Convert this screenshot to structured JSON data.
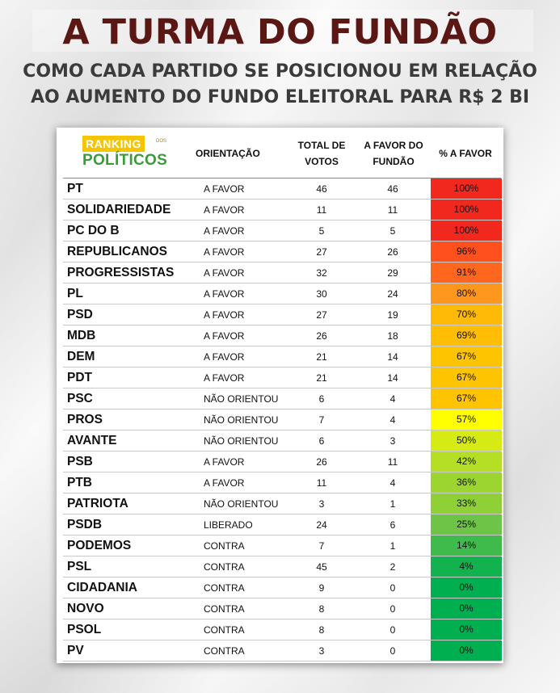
{
  "title": "A TURMA DO FUNDÃO",
  "subtitle_line1": "COMO CADA PARTIDO SE POSICIONOU EM RELAÇÃO",
  "subtitle_line2": "AO AUMENTO DO FUNDO ELEITORAL PARA R$ 2 BI",
  "logo": {
    "top": "RANKING",
    "mini": "DOS",
    "bottom": "POLÍTICOS"
  },
  "headers": {
    "orientation": "ORIENTAÇÃO",
    "total": "TOTAL DE VOTOS",
    "favor": "A FAVOR DO FUNDÃO",
    "pct": "% A FAVOR"
  },
  "colors": {
    "title": "#5a1713",
    "logo_yellow": "#f5c600",
    "logo_green": "#3a9b3a"
  },
  "rows": [
    {
      "party": "PT",
      "orientation": "A FAVOR",
      "total": "46",
      "favor": "46",
      "pct": "100%",
      "pct_value": 100
    },
    {
      "party": "SOLIDARIEDADE",
      "orientation": "A FAVOR",
      "total": "11",
      "favor": "11",
      "pct": "100%",
      "pct_value": 100
    },
    {
      "party": "PC DO B",
      "orientation": "A FAVOR",
      "total": "5",
      "favor": "5",
      "pct": "100%",
      "pct_value": 100
    },
    {
      "party": "REPUBLICANOS",
      "orientation": "A FAVOR",
      "total": "27",
      "favor": "26",
      "pct": "96%",
      "pct_value": 96
    },
    {
      "party": "PROGRESSISTAS",
      "orientation": "A FAVOR",
      "total": "32",
      "favor": "29",
      "pct": "91%",
      "pct_value": 91
    },
    {
      "party": "PL",
      "orientation": "A FAVOR",
      "total": "30",
      "favor": "24",
      "pct": "80%",
      "pct_value": 80
    },
    {
      "party": "PSD",
      "orientation": "A FAVOR",
      "total": "27",
      "favor": "19",
      "pct": "70%",
      "pct_value": 70
    },
    {
      "party": "MDB",
      "orientation": "A FAVOR",
      "total": "26",
      "favor": "18",
      "pct": "69%",
      "pct_value": 69
    },
    {
      "party": "DEM",
      "orientation": "A FAVOR",
      "total": "21",
      "favor": "14",
      "pct": "67%",
      "pct_value": 67
    },
    {
      "party": "PDT",
      "orientation": "A FAVOR",
      "total": "21",
      "favor": "14",
      "pct": "67%",
      "pct_value": 67
    },
    {
      "party": "PSC",
      "orientation": "NÃO ORIENTOU",
      "total": "6",
      "favor": "4",
      "pct": "67%",
      "pct_value": 67
    },
    {
      "party": "PROS",
      "orientation": "NÃO ORIENTOU",
      "total": "7",
      "favor": "4",
      "pct": "57%",
      "pct_value": 57
    },
    {
      "party": "AVANTE",
      "orientation": "NÃO ORIENTOU",
      "total": "6",
      "favor": "3",
      "pct": "50%",
      "pct_value": 50
    },
    {
      "party": "PSB",
      "orientation": "A FAVOR",
      "total": "26",
      "favor": "11",
      "pct": "42%",
      "pct_value": 42
    },
    {
      "party": "PTB",
      "orientation": "A FAVOR",
      "total": "11",
      "favor": "4",
      "pct": "36%",
      "pct_value": 36
    },
    {
      "party": "PATRIOTA",
      "orientation": "NÃO ORIENTOU",
      "total": "3",
      "favor": "1",
      "pct": "33%",
      "pct_value": 33
    },
    {
      "party": "PSDB",
      "orientation": "LIBERADO",
      "total": "24",
      "favor": "6",
      "pct": "25%",
      "pct_value": 25
    },
    {
      "party": "PODEMOS",
      "orientation": "CONTRA",
      "total": "7",
      "favor": "1",
      "pct": "14%",
      "pct_value": 14
    },
    {
      "party": "PSL",
      "orientation": "CONTRA",
      "total": "45",
      "favor": "2",
      "pct": "4%",
      "pct_value": 4
    },
    {
      "party": "CIDADANIA",
      "orientation": "CONTRA",
      "total": "9",
      "favor": "0",
      "pct": "0%",
      "pct_value": 0
    },
    {
      "party": "NOVO",
      "orientation": "CONTRA",
      "total": "8",
      "favor": "0",
      "pct": "0%",
      "pct_value": 0
    },
    {
      "party": "PSOL",
      "orientation": "CONTRA",
      "total": "8",
      "favor": "0",
      "pct": "0%",
      "pct_value": 0
    },
    {
      "party": "PV",
      "orientation": "CONTRA",
      "total": "3",
      "favor": "0",
      "pct": "0%",
      "pct_value": 0
    }
  ]
}
